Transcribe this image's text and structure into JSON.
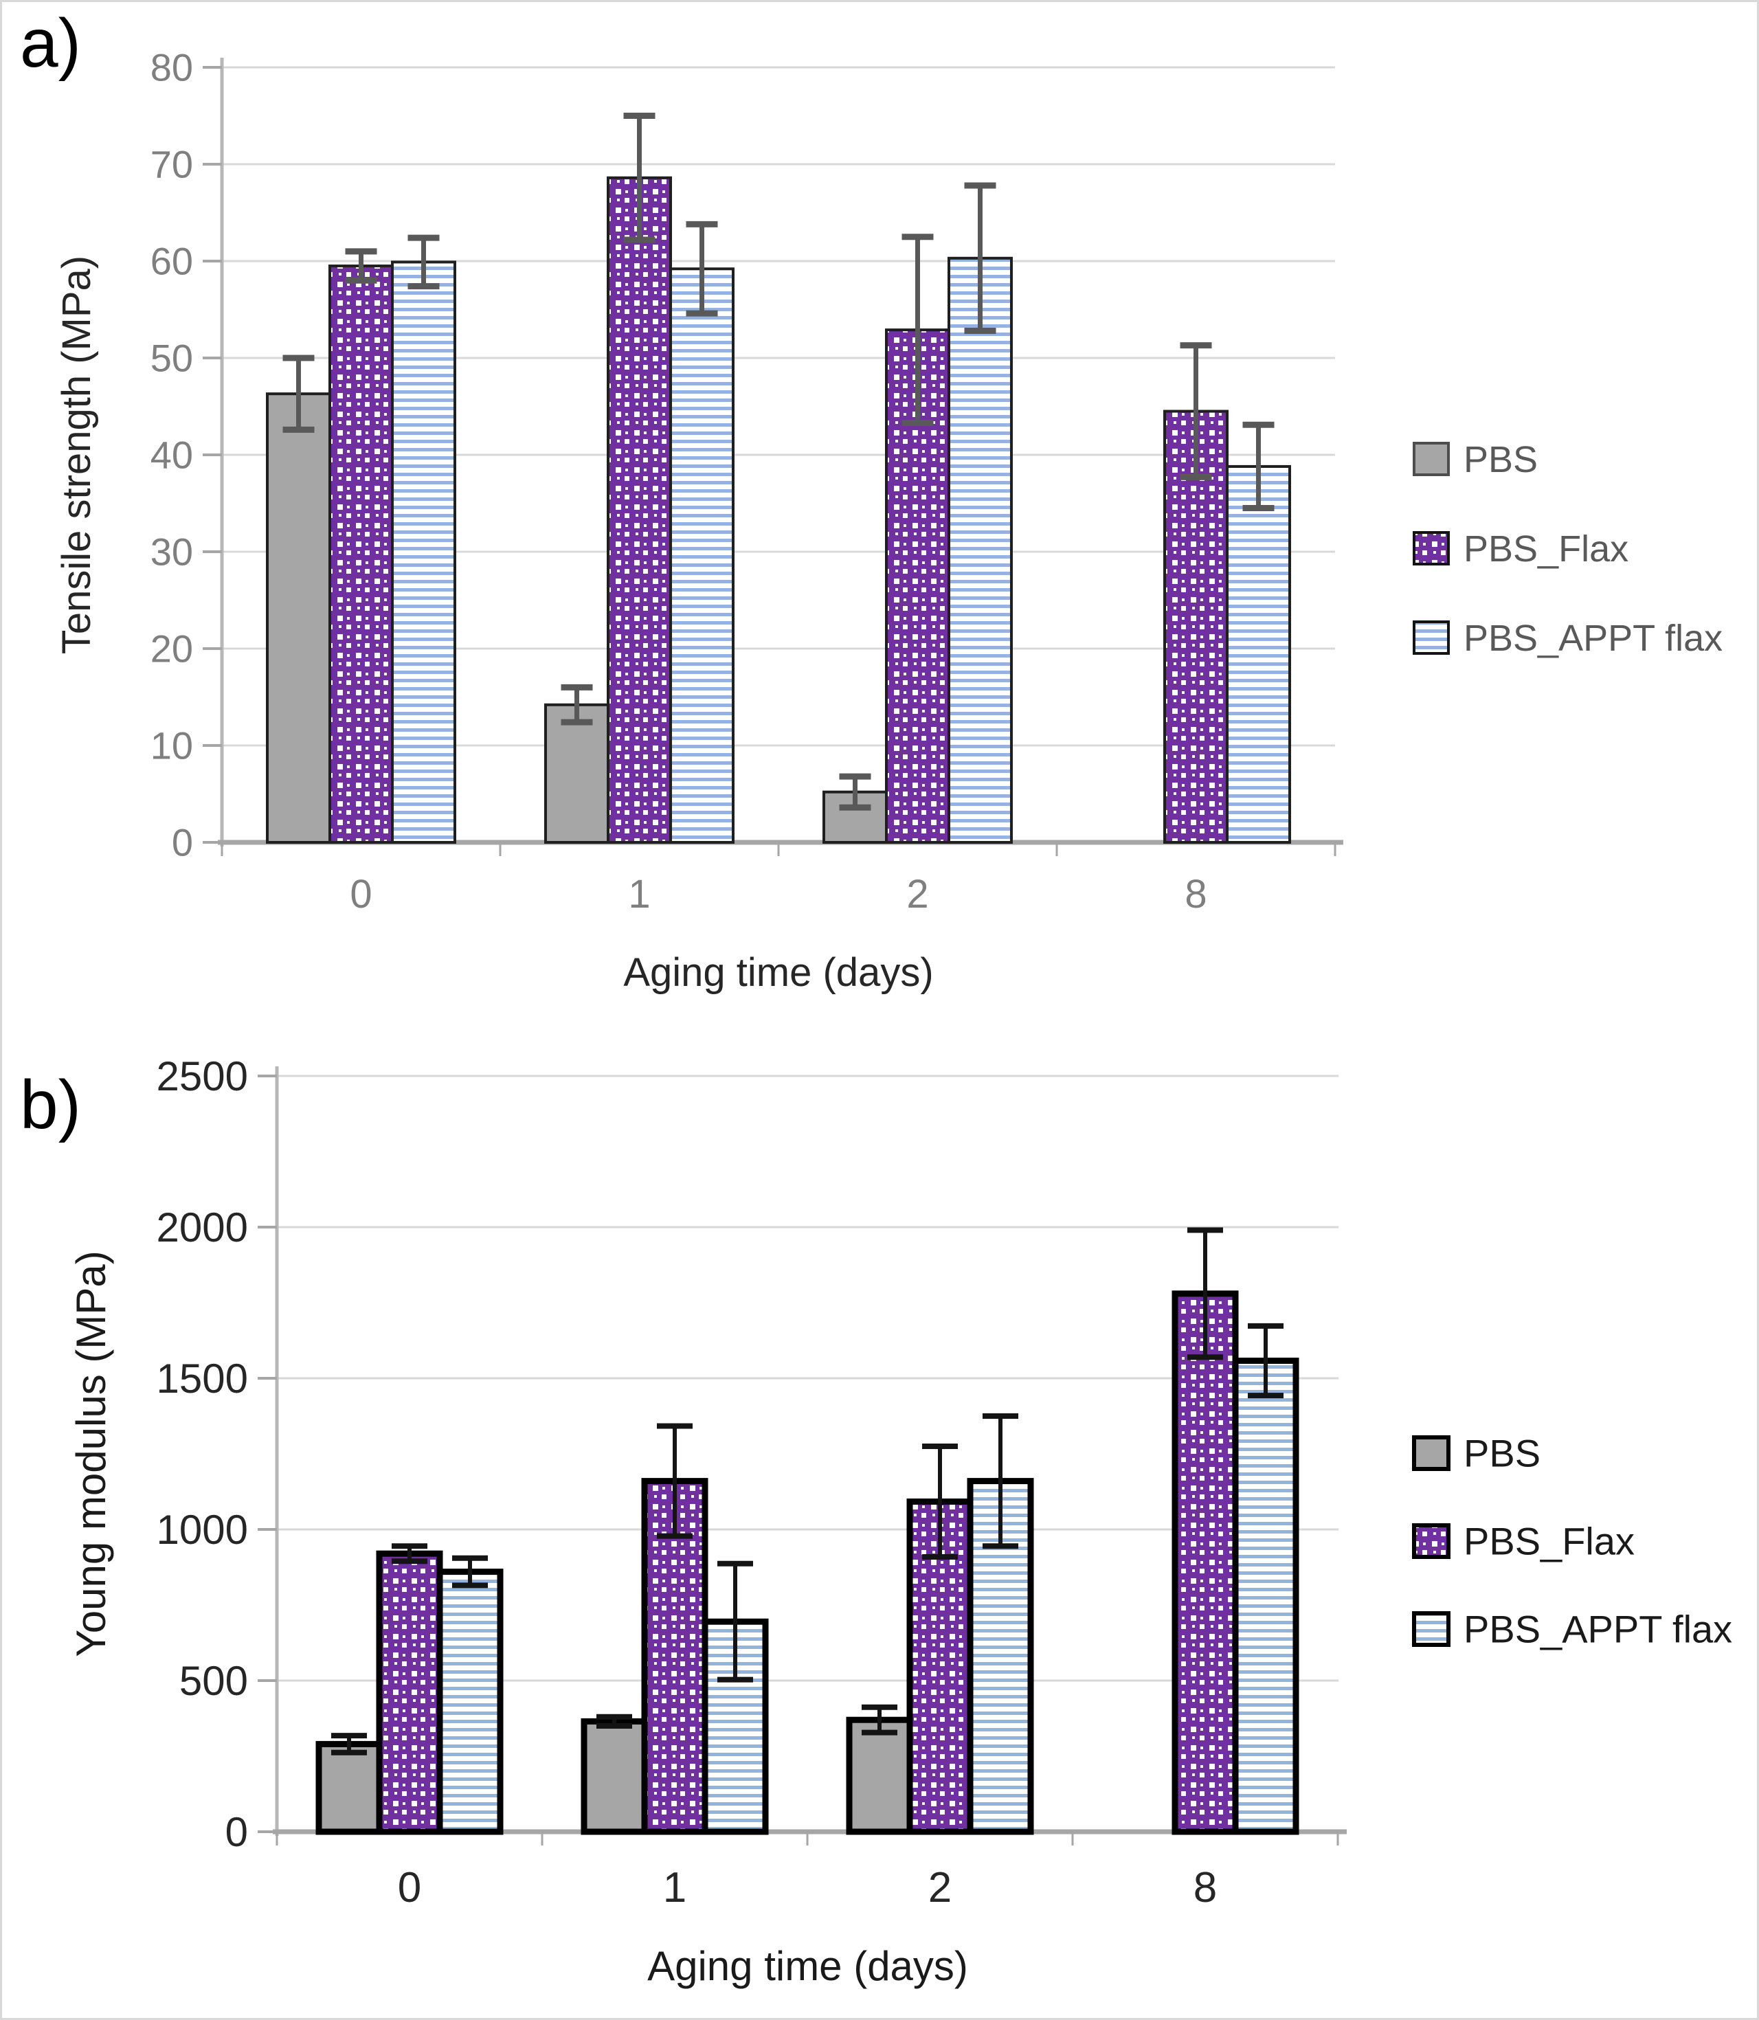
{
  "chart_data": [
    {
      "type": "bar",
      "panel_label": "a)",
      "title": "",
      "xlabel": "Aging time (days)",
      "ylabel": "Tensile strength (MPa)",
      "categories": [
        "0",
        "1",
        "2",
        "8"
      ],
      "ylim": [
        0,
        80
      ],
      "ytick_step": 10,
      "yticks": [
        "0",
        "10",
        "20",
        "30",
        "40",
        "50",
        "60",
        "70",
        "80"
      ],
      "grid": true,
      "legend_position": "right",
      "series": [
        {
          "name": "PBS",
          "fill": "#a6a6a6",
          "pattern": "solid",
          "values": [
            46.3,
            14.2,
            5.2,
            null
          ],
          "errors": [
            3.7,
            1.8,
            1.6,
            null
          ]
        },
        {
          "name": "PBS_Flax",
          "fill": "#7030a0",
          "pattern": "dots",
          "values": [
            59.5,
            68.6,
            52.9,
            44.5
          ],
          "errors": [
            1.5,
            6.4,
            9.6,
            6.8
          ]
        },
        {
          "name": "PBS_APPT flax",
          "fill": "#94b3de",
          "pattern": "hstripes",
          "values": [
            59.9,
            59.2,
            60.3,
            38.8
          ],
          "errors": [
            2.5,
            4.6,
            7.5,
            4.3
          ]
        }
      ]
    },
    {
      "type": "bar",
      "panel_label": "b)",
      "title": "",
      "xlabel": "Aging time (days)",
      "ylabel": "Young modulus (MPa)",
      "categories": [
        "0",
        "1",
        "2",
        "8"
      ],
      "ylim": [
        0,
        2500
      ],
      "ytick_step": 500,
      "yticks": [
        "0",
        "500",
        "1000",
        "1500",
        "2000",
        "2500"
      ],
      "grid": true,
      "legend_position": "right",
      "series": [
        {
          "name": "PBS",
          "fill": "#a6a6a6",
          "pattern": "solid",
          "values": [
            290,
            365,
            370,
            null
          ],
          "errors": [
            28,
            15,
            42,
            null
          ]
        },
        {
          "name": "PBS_Flax",
          "fill": "#7030a0",
          "pattern": "dots",
          "values": [
            920,
            1160,
            1092,
            1780
          ],
          "errors": [
            25,
            182,
            183,
            210
          ]
        },
        {
          "name": "PBS_APPT flax",
          "fill": "#94b3de",
          "pattern": "hstripes",
          "values": [
            860,
            695,
            1160,
            1558
          ],
          "errors": [
            45,
            192,
            215,
            115
          ]
        }
      ]
    }
  ]
}
